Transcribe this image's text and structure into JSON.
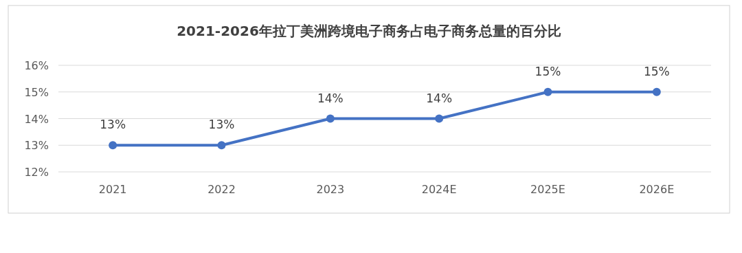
{
  "chart_data": {
    "type": "line",
    "title": "2021-2026年拉丁美洲跨境电子商务占电子商务总量的百分比",
    "categories": [
      "2021",
      "2022",
      "2023",
      "2024E",
      "2025E",
      "2026E"
    ],
    "series": [
      {
        "color": "#4472c4",
        "values": [
          13,
          13,
          14,
          14,
          15,
          15
        ],
        "value_labels": [
          "13%",
          "13%",
          "14%",
          "14%",
          "15%",
          "15%"
        ]
      }
    ],
    "ylim": [
      12,
      16
    ],
    "yticks": [
      {
        "value": 12,
        "label": "12%"
      },
      {
        "value": 13,
        "label": "13%"
      },
      {
        "value": 14,
        "label": "14%"
      },
      {
        "value": 15,
        "label": "15%"
      },
      {
        "value": 16,
        "label": "16%"
      }
    ],
    "grid": "y",
    "marker": "circle",
    "line_style": "solid"
  }
}
